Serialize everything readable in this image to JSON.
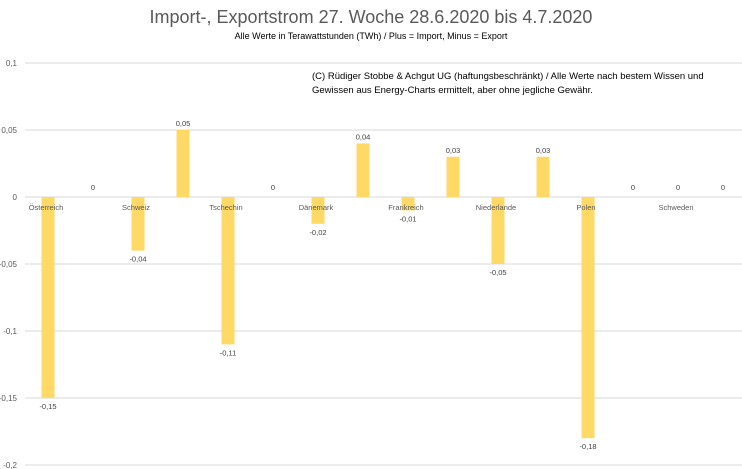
{
  "chart_data": {
    "type": "bar",
    "title": "Import-, Exportstrom 27. Woche 28.6.2020 bis 4.7.2020",
    "subtitle": "Alle Werte in Terawattstunden (TWh) / Plus = Import, Minus = Export",
    "annotation": "(C) Rüdiger Stobbe & Achgut UG (haftungsbeschränkt) / Alle Werte nach bestem Wissen und Gewissen aus Energy-Charts ermittelt, aber ohne jegliche Gewähr.",
    "categories": [
      "Österreich",
      "Schweiz",
      "Tschechin",
      "Dänemark",
      "Frankreich",
      "Niederlande",
      "Polen",
      "Schweden"
    ],
    "series": [
      {
        "values": [
          -0.15,
          -0.04,
          -0.11,
          -0.02,
          -0.01,
          -0.05,
          -0.18,
          0
        ]
      },
      {
        "values": [
          0,
          0.05,
          0,
          0.04,
          0.03,
          0.03,
          0,
          0
        ]
      }
    ],
    "ylim": [
      -0.2,
      0.1
    ],
    "yticks": [
      0.1,
      0.05,
      0,
      -0.05,
      -0.1,
      -0.15,
      -0.2
    ],
    "grid": true,
    "legend": "none",
    "bar_color": "#FFD966"
  }
}
